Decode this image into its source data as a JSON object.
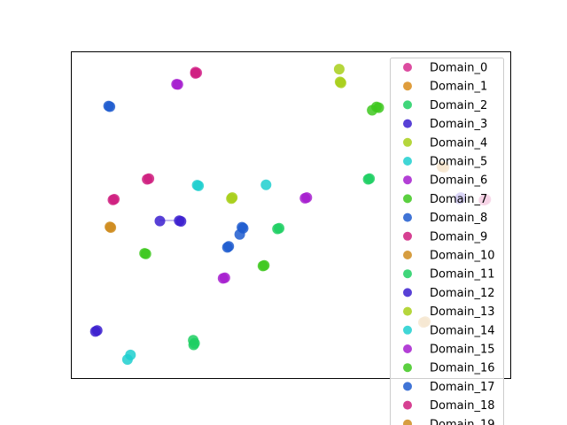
{
  "chart_data": {
    "type": "scatter",
    "title": "",
    "xlabel": "",
    "ylabel": "",
    "xaxis_visible": false,
    "yaxis_visible": false,
    "xlim": [
      0,
      100
    ],
    "ylim": [
      0,
      100
    ],
    "grid": false,
    "legend_position": "right",
    "series": [
      {
        "name": "Domain_0",
        "color": "#d62d8f",
        "points": [
          [
            28.2,
            93.9
          ],
          [
            28.5,
            93.7
          ]
        ]
      },
      {
        "name": "Domain_1",
        "color": "#d98c1a",
        "points": [
          [
            84.4,
            64.9
          ],
          [
            84.9,
            64.7
          ]
        ]
      },
      {
        "name": "Domain_2",
        "color": "#1ecf63",
        "points": [
          [
            27.8,
            10.2
          ],
          [
            27.7,
            11.6
          ],
          [
            28.0,
            10.7
          ]
        ]
      },
      {
        "name": "Domain_3",
        "color": "#3b1fcf",
        "points": [
          [
            88.4,
            55.0
          ],
          [
            88.7,
            55.4
          ]
        ]
      },
      {
        "name": "Domain_4",
        "color": "#a8cf1a",
        "points": [
          [
            61.4,
            90.6
          ],
          [
            61.2,
            90.9
          ]
        ]
      },
      {
        "name": "Domain_5",
        "color": "#1ecfcf",
        "points": [
          [
            28.6,
            59.2
          ],
          [
            28.9,
            59.0
          ]
        ]
      },
      {
        "name": "Domain_6",
        "color": "#a61ecf",
        "points": [
          [
            23.9,
            90.2
          ],
          [
            24.2,
            90.1
          ]
        ]
      },
      {
        "name": "Domain_7",
        "color": "#3ec81e",
        "points": [
          [
            68.5,
            82.2
          ],
          [
            69.5,
            83.2
          ],
          [
            70.0,
            83.0
          ]
        ]
      },
      {
        "name": "Domain_8",
        "color": "#1e5ccf",
        "points": [
          [
            38.3,
            44.1
          ]
        ]
      },
      {
        "name": "Domain_9",
        "color": "#cf1e7f",
        "points": [
          [
            94.0,
            54.6
          ],
          [
            94.4,
            54.8
          ]
        ]
      },
      {
        "name": "Domain_10",
        "color": "#cf8c1e",
        "points": [
          [
            8.7,
            46.4
          ],
          [
            8.9,
            46.2
          ]
        ]
      },
      {
        "name": "Domain_11",
        "color": "#1ecf63",
        "points": [
          [
            67.6,
            61.0
          ],
          [
            67.9,
            61.2
          ]
        ]
      },
      {
        "name": "Domain_12",
        "color": "#3b1fcf",
        "points": [
          [
            24.5,
            48.3
          ],
          [
            24.9,
            48.1
          ],
          [
            20.1,
            48.2
          ]
        ]
      },
      {
        "name": "Domain_13",
        "color": "#a8cf1a",
        "points": [
          [
            61.0,
            94.8
          ],
          [
            36.6,
            55.4
          ],
          [
            36.4,
            55.1
          ]
        ]
      },
      {
        "name": "Domain_14",
        "color": "#1ecfcf",
        "points": [
          [
            12.7,
            5.7
          ],
          [
            13.4,
            7.1
          ],
          [
            44.3,
            59.3
          ]
        ]
      },
      {
        "name": "Domain_15",
        "color": "#a61ecf",
        "points": [
          [
            53.2,
            55.2
          ],
          [
            53.6,
            55.4
          ]
        ]
      },
      {
        "name": "Domain_16",
        "color": "#3ec81e",
        "points": [
          [
            16.6,
            38.3
          ],
          [
            16.9,
            38.1
          ],
          [
            43.6,
            34.4
          ],
          [
            43.9,
            34.6
          ]
        ]
      },
      {
        "name": "Domain_17",
        "color": "#1e5ccf",
        "points": [
          [
            8.4,
            83.5
          ],
          [
            8.7,
            83.3
          ],
          [
            38.8,
            46.3
          ],
          [
            39.1,
            46.0
          ],
          [
            35.5,
            40.1
          ],
          [
            35.8,
            40.4
          ]
        ]
      },
      {
        "name": "Domain_18",
        "color": "#cf1e7f",
        "points": [
          [
            17.2,
            61.0
          ],
          [
            17.6,
            61.2
          ],
          [
            9.4,
            54.7
          ],
          [
            9.7,
            54.9
          ]
        ]
      },
      {
        "name": "Domain_19",
        "color": "#cf8c1e",
        "points": [
          [
            80.2,
            17.1
          ],
          [
            80.6,
            17.3
          ]
        ]
      },
      {
        "name": "",
        "color": "#cf1e7f",
        "points": [
          [
            28.2,
            93.5
          ]
        ]
      },
      {
        "name": "",
        "color": "#a61ecf",
        "points": [
          [
            34.5,
            30.6
          ],
          [
            34.9,
            30.8
          ]
        ]
      },
      {
        "name": "",
        "color": "#1ecf63",
        "points": [
          [
            46.9,
            45.8
          ],
          [
            47.3,
            46.0
          ]
        ]
      },
      {
        "name": "",
        "color": "#3b1fcf",
        "points": [
          [
            5.4,
            14.3
          ],
          [
            5.8,
            14.6
          ]
        ]
      }
    ]
  }
}
